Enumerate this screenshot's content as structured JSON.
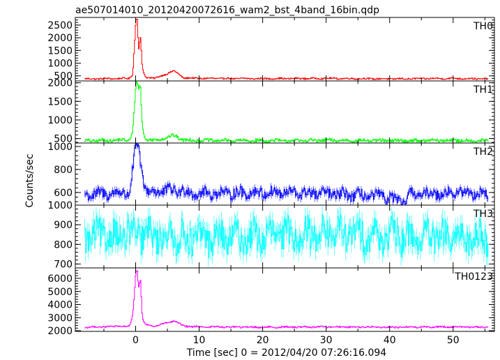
{
  "chart_data": {
    "type": "line",
    "title": "ae507014010_20120420072616_wam2_bst_4band_16bin.qdp",
    "xlabel": "Time [sec] 0 = 2012/04/20 07:26:16.094",
    "ylabel": "Counts/sec",
    "xlim": [
      -9.5,
      56.5
    ],
    "x_ticks": [
      0,
      10,
      20,
      30,
      40,
      50
    ],
    "grid": false,
    "legend": "none",
    "panels": [
      {
        "name": "TH0",
        "color": "#ff0000",
        "ylim": [
          300,
          2800
        ],
        "y_ticks": [
          500,
          1000,
          1500,
          2000,
          2500
        ],
        "baseline": 380,
        "noise": 30,
        "x": [
          -8,
          -1,
          -0.5,
          0,
          0.2,
          0.4,
          0.7,
          1.0,
          1.5,
          3,
          6,
          7.5,
          10,
          20,
          30,
          40,
          50,
          55.5
        ],
        "y": [
          380,
          400,
          600,
          2750,
          2750,
          1500,
          2000,
          800,
          450,
          400,
          700,
          420,
          400,
          390,
          400,
          380,
          400,
          380
        ]
      },
      {
        "name": "TH1",
        "color": "#00ff00",
        "ylim": [
          380,
          2050
        ],
        "y_ticks": [
          500,
          1000,
          1500,
          2000
        ],
        "baseline": 440,
        "noise": 40,
        "x": [
          -8,
          -1,
          -0.5,
          0,
          0.2,
          0.4,
          0.7,
          1.0,
          1.5,
          3,
          6,
          7.5,
          10,
          20,
          30,
          40,
          50,
          55.5
        ],
        "y": [
          440,
          460,
          700,
          2000,
          2000,
          1850,
          1900,
          800,
          480,
          450,
          580,
          460,
          450,
          440,
          450,
          440,
          450,
          440
        ]
      },
      {
        "name": "TH2",
        "color": "#0000ff",
        "ylim": [
          490,
          1030
        ],
        "y_ticks": [
          600,
          800,
          1000
        ],
        "baseline": 590,
        "noise": 45,
        "x": [
          -8,
          -1,
          -0.5,
          0,
          0.2,
          0.5,
          0.8,
          1.2,
          2,
          6,
          10,
          20,
          30,
          40,
          42,
          43,
          50,
          55.5
        ],
        "y": [
          580,
          600,
          800,
          1000,
          1010,
          950,
          850,
          680,
          600,
          620,
          590,
          600,
          590,
          560,
          500,
          580,
          600,
          590
        ]
      },
      {
        "name": "TH3",
        "color": "#00ffff",
        "ylim": [
          680,
          1000
        ],
        "y_ticks": [
          700,
          800,
          900,
          1000
        ],
        "baseline": 840,
        "noise": 75,
        "x": [
          -8,
          0,
          10,
          20,
          30,
          40,
          50,
          55.5
        ],
        "y": [
          840,
          850,
          830,
          840,
          860,
          840,
          830,
          840
        ]
      },
      {
        "name": "TH0123",
        "color": "#ff00ff",
        "ylim": [
          1950,
          6800
        ],
        "y_ticks": [
          2000,
          3000,
          4000,
          5000,
          6000
        ],
        "baseline": 2270,
        "noise": 60,
        "x": [
          -8,
          -1,
          -0.5,
          0,
          0.2,
          0.4,
          0.7,
          1.0,
          1.5,
          3,
          6,
          7.5,
          10,
          20,
          30,
          40,
          50,
          55.5
        ],
        "y": [
          2270,
          2350,
          3200,
          6600,
          6600,
          5200,
          5900,
          3000,
          2450,
          2350,
          2750,
          2350,
          2300,
          2270,
          2300,
          2270,
          2300,
          2270
        ]
      }
    ]
  }
}
